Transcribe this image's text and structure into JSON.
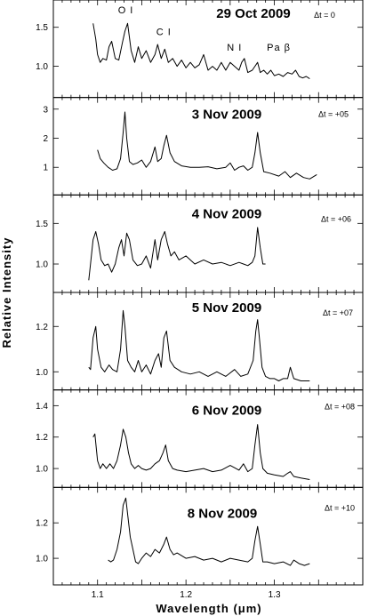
{
  "chart_data": {
    "type": "line",
    "xlabel": "Wavelength (μm)",
    "ylabel": "Relative Intensity",
    "xlim": [
      1.05,
      1.4
    ],
    "x_ticks": [
      "1.1",
      "1.2",
      "1.3"
    ],
    "x_tick_values": [
      1.1,
      1.2,
      1.3
    ],
    "grid": false,
    "panels": [
      {
        "date": "29 Oct 2009",
        "dt": "Δt = 0",
        "ylim": [
          0.6,
          1.85
        ],
        "y_ticks": [
          "1.0",
          "1.5"
        ],
        "y_tick_values": [
          1.0,
          1.5
        ],
        "annotations": [
          {
            "text": "O I",
            "x": 1.132,
            "y": 1.68
          },
          {
            "text": "C I",
            "x": 1.175,
            "y": 1.4
          },
          {
            "text": "N I",
            "x": 1.255,
            "y": 1.2
          },
          {
            "text": "Pa β",
            "x": 1.305,
            "y": 1.2
          }
        ],
        "x": [
          1.095,
          1.098,
          1.1,
          1.103,
          1.106,
          1.11,
          1.113,
          1.116,
          1.12,
          1.124,
          1.128,
          1.131,
          1.134,
          1.138,
          1.142,
          1.146,
          1.15,
          1.155,
          1.16,
          1.165,
          1.168,
          1.172,
          1.176,
          1.18,
          1.185,
          1.19,
          1.195,
          1.2,
          1.205,
          1.21,
          1.215,
          1.22,
          1.225,
          1.23,
          1.235,
          1.24,
          1.245,
          1.25,
          1.255,
          1.26,
          1.263,
          1.266,
          1.27,
          1.275,
          1.278,
          1.281,
          1.284,
          1.288,
          1.292,
          1.296,
          1.3,
          1.305,
          1.31,
          1.315,
          1.32,
          1.324,
          1.328,
          1.332,
          1.336,
          1.34
        ],
        "y": [
          1.55,
          1.35,
          1.15,
          1.05,
          1.1,
          1.08,
          1.25,
          1.32,
          1.1,
          1.08,
          1.3,
          1.45,
          1.55,
          1.2,
          1.05,
          1.25,
          1.1,
          1.2,
          1.05,
          1.15,
          1.28,
          1.1,
          1.22,
          1.05,
          1.1,
          1.0,
          1.08,
          0.98,
          1.05,
          0.98,
          1.02,
          1.15,
          0.95,
          1.0,
          0.95,
          1.05,
          0.95,
          1.05,
          1.0,
          0.95,
          1.05,
          1.1,
          0.92,
          0.95,
          1.0,
          1.05,
          0.92,
          0.95,
          0.9,
          0.95,
          0.88,
          0.9,
          0.87,
          0.92,
          0.9,
          0.95,
          0.87,
          0.85,
          0.87,
          0.84
        ]
      },
      {
        "date": "3 Nov 2009",
        "dt": "Δt = +05",
        "ylim": [
          0.05,
          3.4
        ],
        "y_ticks": [
          "1",
          "2",
          "3"
        ],
        "y_tick_values": [
          1,
          2,
          3
        ],
        "x": [
          1.1,
          1.103,
          1.107,
          1.112,
          1.117,
          1.122,
          1.126,
          1.129,
          1.131,
          1.133,
          1.136,
          1.14,
          1.145,
          1.15,
          1.155,
          1.16,
          1.165,
          1.168,
          1.172,
          1.175,
          1.178,
          1.182,
          1.187,
          1.195,
          1.205,
          1.215,
          1.225,
          1.235,
          1.245,
          1.25,
          1.255,
          1.26,
          1.265,
          1.27,
          1.275,
          1.278,
          1.281,
          1.284,
          1.288,
          1.295,
          1.305,
          1.312,
          1.318,
          1.325,
          1.333,
          1.34,
          1.348
        ],
        "y": [
          1.6,
          1.3,
          1.15,
          1.0,
          0.9,
          0.95,
          1.3,
          2.2,
          2.9,
          2.0,
          1.2,
          1.1,
          1.15,
          1.25,
          1.0,
          1.2,
          1.7,
          1.2,
          1.3,
          1.75,
          2.1,
          1.5,
          1.2,
          1.05,
          1.0,
          1.0,
          1.02,
          0.95,
          1.0,
          1.15,
          0.9,
          1.0,
          1.05,
          0.9,
          1.0,
          1.5,
          2.2,
          1.5,
          0.85,
          0.8,
          0.7,
          0.85,
          0.65,
          0.8,
          0.65,
          0.6,
          0.75
        ]
      },
      {
        "date": "4 Nov 2009",
        "dt": "Δt = +06",
        "ylim": [
          0.65,
          1.85
        ],
        "y_ticks": [
          "1.0",
          "1.5"
        ],
        "y_tick_values": [
          1.0,
          1.5
        ],
        "x": [
          1.09,
          1.092,
          1.095,
          1.098,
          1.101,
          1.104,
          1.108,
          1.112,
          1.116,
          1.12,
          1.124,
          1.127,
          1.13,
          1.133,
          1.136,
          1.14,
          1.145,
          1.15,
          1.155,
          1.16,
          1.165,
          1.168,
          1.172,
          1.176,
          1.179,
          1.183,
          1.187,
          1.192,
          1.2,
          1.21,
          1.22,
          1.23,
          1.24,
          1.25,
          1.26,
          1.265,
          1.27,
          1.275,
          1.278,
          1.281,
          1.284,
          1.287,
          1.29
        ],
        "y": [
          0.8,
          1.0,
          1.3,
          1.4,
          1.25,
          1.05,
          0.98,
          1.0,
          0.9,
          1.0,
          1.2,
          1.3,
          1.1,
          1.38,
          1.3,
          1.05,
          0.98,
          1.0,
          1.1,
          0.95,
          1.3,
          1.05,
          1.3,
          1.4,
          1.25,
          1.1,
          1.15,
          1.05,
          1.1,
          1.0,
          1.05,
          1.0,
          1.02,
          0.98,
          1.02,
          1.0,
          0.98,
          1.02,
          1.1,
          1.45,
          1.2,
          1.0,
          1.0
        ]
      },
      {
        "date": "5 Nov 2009",
        "dt": "Δt = +07",
        "ylim": [
          0.92,
          1.35
        ],
        "y_ticks": [
          "1.0",
          "1.2"
        ],
        "y_tick_values": [
          1.0,
          1.2
        ],
        "x": [
          1.09,
          1.092,
          1.095,
          1.098,
          1.1,
          1.104,
          1.108,
          1.113,
          1.117,
          1.122,
          1.126,
          1.129,
          1.131,
          1.134,
          1.138,
          1.142,
          1.146,
          1.15,
          1.155,
          1.16,
          1.165,
          1.169,
          1.172,
          1.175,
          1.178,
          1.182,
          1.187,
          1.195,
          1.205,
          1.215,
          1.225,
          1.235,
          1.245,
          1.255,
          1.262,
          1.27,
          1.276,
          1.279,
          1.281,
          1.283,
          1.286,
          1.29,
          1.295,
          1.3,
          1.305,
          1.31,
          1.315,
          1.318,
          1.322,
          1.33,
          1.34
        ],
        "y": [
          1.02,
          1.01,
          1.15,
          1.2,
          1.1,
          1.02,
          1.0,
          1.03,
          1.01,
          1.0,
          1.1,
          1.27,
          1.2,
          1.05,
          1.02,
          1.0,
          1.05,
          1.0,
          1.03,
          0.99,
          1.05,
          1.08,
          1.02,
          1.15,
          1.18,
          1.05,
          1.02,
          1.0,
          0.99,
          1.0,
          0.98,
          1.0,
          0.98,
          1.01,
          0.98,
          0.99,
          1.05,
          1.18,
          1.23,
          1.15,
          1.02,
          0.98,
          0.97,
          0.97,
          0.96,
          0.97,
          0.97,
          1.02,
          0.97,
          0.96,
          0.96
        ]
      },
      {
        "date": "6 Nov 2009",
        "dt": "Δt = +08",
        "ylim": [
          0.88,
          1.5
        ],
        "y_ticks": [
          "1.0",
          "1.2",
          "1.4"
        ],
        "y_tick_values": [
          1.0,
          1.2,
          1.4
        ],
        "x": [
          1.095,
          1.097,
          1.1,
          1.103,
          1.106,
          1.11,
          1.114,
          1.118,
          1.122,
          1.126,
          1.129,
          1.132,
          1.135,
          1.138,
          1.142,
          1.146,
          1.15,
          1.155,
          1.16,
          1.165,
          1.17,
          1.174,
          1.177,
          1.18,
          1.185,
          1.19,
          1.2,
          1.21,
          1.22,
          1.23,
          1.24,
          1.25,
          1.26,
          1.265,
          1.27,
          1.275,
          1.278,
          1.281,
          1.284,
          1.287,
          1.292,
          1.3,
          1.31,
          1.315,
          1.318,
          1.322,
          1.33,
          1.34
        ],
        "y": [
          1.2,
          1.22,
          1.05,
          1.0,
          1.03,
          1.0,
          1.03,
          1.0,
          1.05,
          1.15,
          1.25,
          1.2,
          1.1,
          1.03,
          1.0,
          1.02,
          1.0,
          0.99,
          1.0,
          1.03,
          1.05,
          1.1,
          1.15,
          1.05,
          1.0,
          0.99,
          0.98,
          0.99,
          1.0,
          0.98,
          0.99,
          1.02,
          0.99,
          1.03,
          0.98,
          1.0,
          1.15,
          1.28,
          1.1,
          1.0,
          0.97,
          0.96,
          0.95,
          0.97,
          0.98,
          0.95,
          0.94,
          0.93
        ]
      },
      {
        "date": "8 Nov 2009",
        "dt": "Δt = +10",
        "ylim": [
          0.85,
          1.4
        ],
        "y_ticks": [
          "1.0",
          "1.2"
        ],
        "y_tick_values": [
          1.0,
          1.2
        ],
        "x": [
          1.112,
          1.115,
          1.118,
          1.122,
          1.126,
          1.129,
          1.132,
          1.134,
          1.137,
          1.14,
          1.143,
          1.146,
          1.15,
          1.155,
          1.16,
          1.165,
          1.17,
          1.175,
          1.178,
          1.182,
          1.186,
          1.19,
          1.2,
          1.21,
          1.22,
          1.23,
          1.24,
          1.25,
          1.26,
          1.27,
          1.275,
          1.278,
          1.281,
          1.284,
          1.287,
          1.292,
          1.3,
          1.31,
          1.318,
          1.322,
          1.328,
          1.334,
          1.34
        ],
        "y": [
          0.99,
          0.98,
          0.99,
          1.05,
          1.15,
          1.3,
          1.34,
          1.25,
          1.12,
          1.05,
          0.98,
          0.97,
          1.0,
          1.03,
          1.01,
          1.05,
          1.03,
          1.08,
          1.12,
          1.05,
          1.02,
          1.03,
          1.0,
          1.01,
          0.99,
          1.0,
          0.98,
          1.0,
          0.99,
          0.98,
          1.0,
          1.1,
          1.18,
          1.08,
          0.98,
          0.98,
          0.97,
          0.98,
          0.96,
          0.99,
          0.97,
          0.96,
          0.97
        ]
      }
    ]
  }
}
